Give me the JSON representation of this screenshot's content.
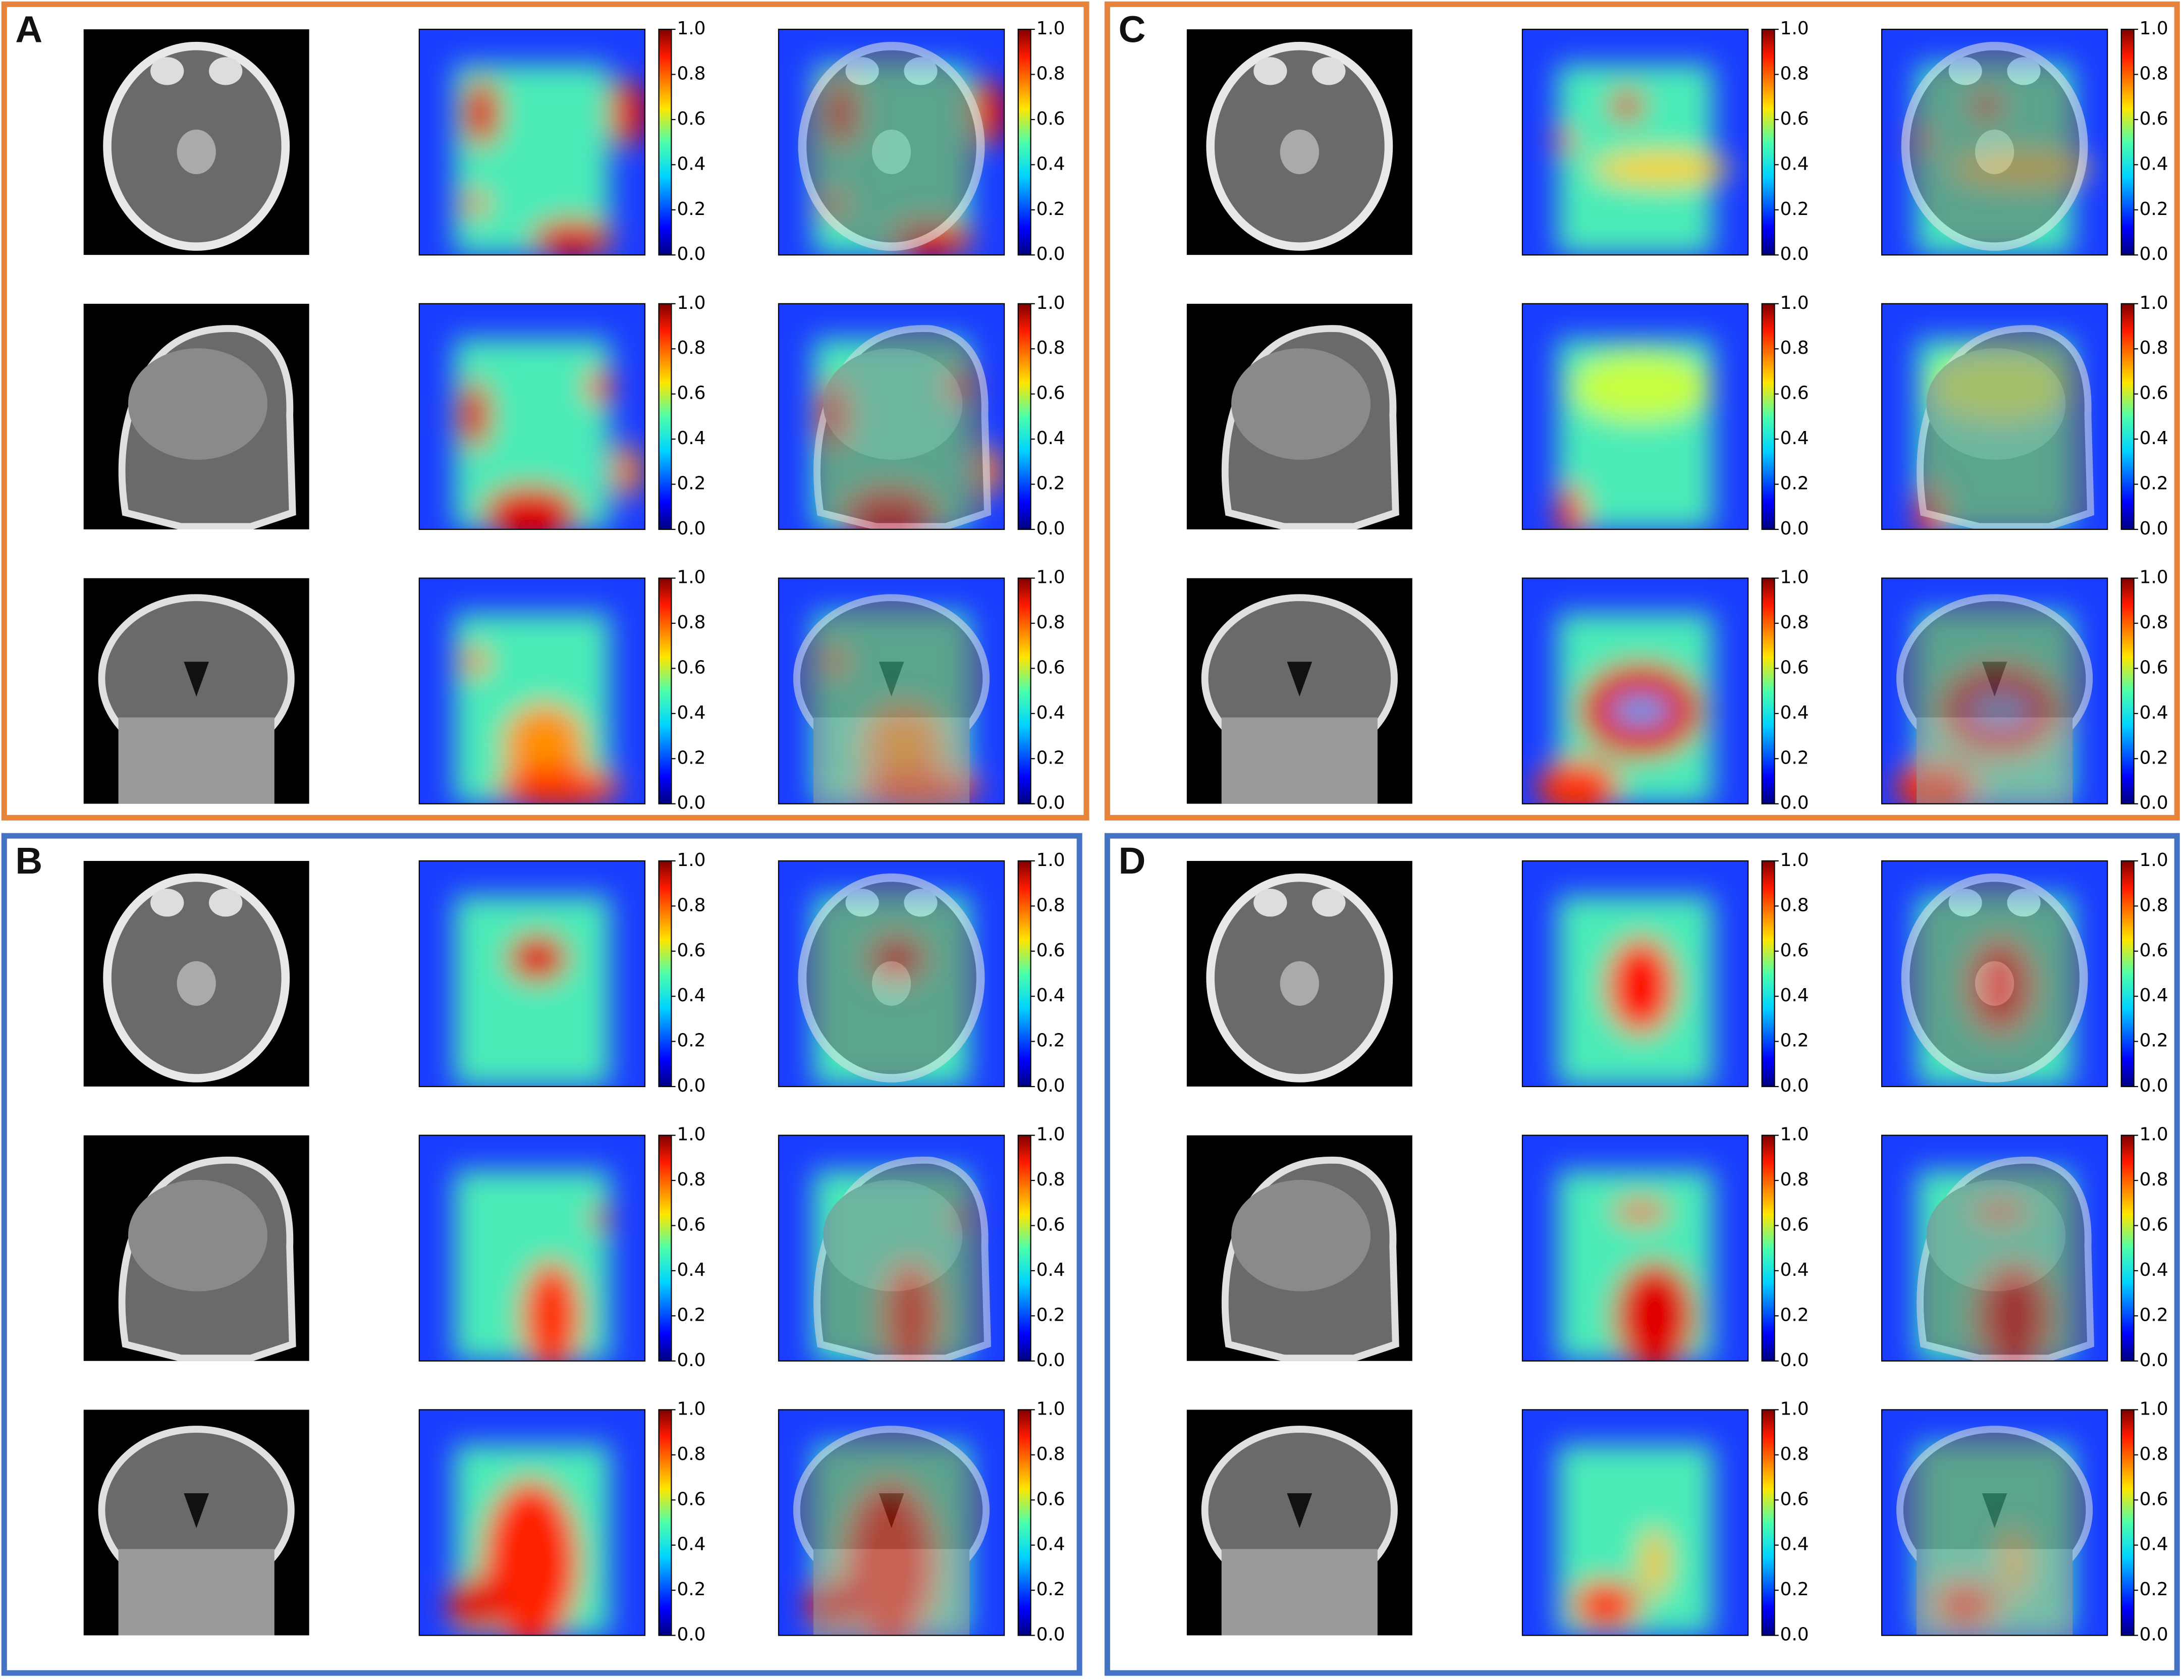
{
  "panels": [
    {
      "label": "A",
      "border_color": "#e8833a"
    },
    {
      "label": "B",
      "border_color": "#4472c4"
    },
    {
      "label": "C",
      "border_color": "#e8833a"
    },
    {
      "label": "D",
      "border_color": "#4472c4"
    }
  ],
  "colorbar": {
    "lim": [
      0,
      1
    ],
    "ticks": [
      {
        "value": 0,
        "label": "0.0"
      },
      {
        "value": 0.2,
        "label": "0.2"
      },
      {
        "value": 0.4,
        "label": "0.4"
      },
      {
        "value": 0.6,
        "label": "0.6"
      },
      {
        "value": 0.8,
        "label": "0.8"
      },
      {
        "value": 1,
        "label": "1.0"
      }
    ]
  }
}
